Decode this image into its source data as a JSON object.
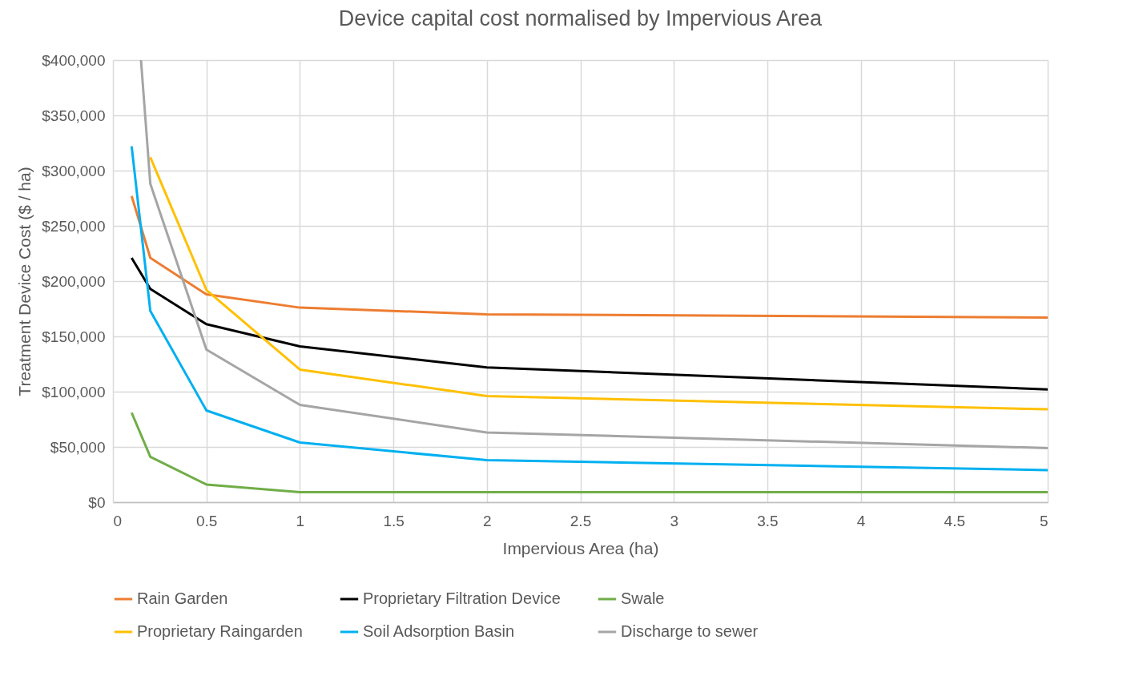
{
  "chart_data": {
    "type": "line",
    "title": "Device capital cost normalised by Impervious Area",
    "xlabel": "Impervious Area (ha)",
    "ylabel": "Treatment Device Cost ($ / ha)",
    "x": [
      0.1,
      0.2,
      0.5,
      1,
      2,
      5
    ],
    "series": [
      {
        "name": "Rain Garden",
        "color": "#ed7d31",
        "values": [
          277000,
          221000,
          188000,
          176000,
          170000,
          167000
        ]
      },
      {
        "name": "Proprietary Filtration Device",
        "color": "#000000",
        "values": [
          221000,
          193000,
          161000,
          141000,
          122000,
          102000
        ]
      },
      {
        "name": "Swale",
        "color": "#70ad47",
        "values": [
          81000,
          41000,
          16000,
          9000,
          9000,
          9000
        ]
      },
      {
        "name": "Proprietary Raingarden",
        "color": "#ffc000",
        "values": [
          null,
          312000,
          192000,
          120000,
          96000,
          84000
        ]
      },
      {
        "name": "Soil Adsorption Basin",
        "color": "#00b0f0",
        "values": [
          322000,
          173000,
          83000,
          54000,
          38000,
          29000
        ]
      },
      {
        "name": "Discharge to sewer",
        "color": "#a5a5a5",
        "x": [
          0.15,
          0.2,
          0.5,
          1,
          2,
          5
        ],
        "values": [
          400000,
          288000,
          138000,
          88000,
          63000,
          49000
        ]
      }
    ],
    "xlim": [
      0,
      5
    ],
    "xticks": [
      0,
      0.5,
      1,
      1.5,
      2,
      2.5,
      3,
      3.5,
      4,
      4.5,
      5
    ],
    "ylim": [
      0,
      400000
    ],
    "yticks": [
      {
        "value": 0,
        "label": "$0"
      },
      {
        "value": 50000,
        "label": "$50,000"
      },
      {
        "value": 100000,
        "label": "$100,000"
      },
      {
        "value": 150000,
        "label": "$150,000"
      },
      {
        "value": 200000,
        "label": "$200,000"
      },
      {
        "value": 250000,
        "label": "$250,000"
      },
      {
        "value": 300000,
        "label": "$300,000"
      },
      {
        "value": 350000,
        "label": "$350,000"
      },
      {
        "value": 400000,
        "label": "$400,000"
      }
    ],
    "grid": true,
    "legend": "bottom",
    "marker": "none",
    "line_style": "solid"
  }
}
